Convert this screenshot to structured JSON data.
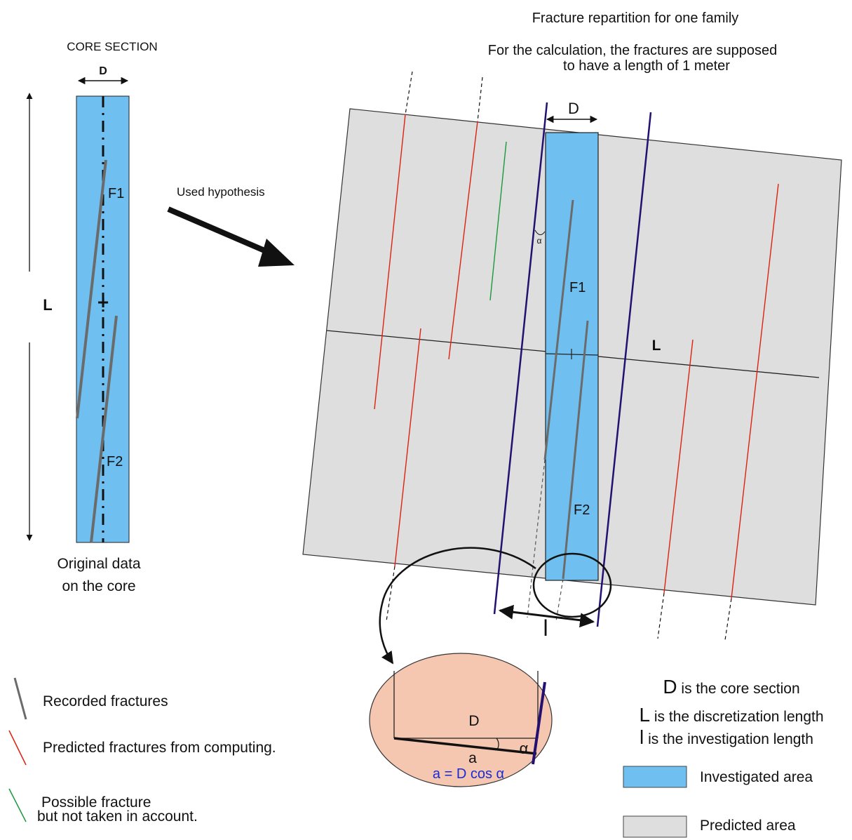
{
  "core_section": {
    "title": "CORE SECTION",
    "diameter_label": "D",
    "length_label": "L",
    "fracture1_label": "F1",
    "fracture2_label": "F2",
    "center_marker": "+",
    "caption_line1": "Original data",
    "caption_line2": "on the core"
  },
  "arrow_label": "Used hypothesis",
  "title": {
    "line1": "Fracture  repartition for one family",
    "line2": "For the calculation, the fractures are supposed",
    "line3": "to have a length of 1 meter"
  },
  "model": {
    "diameter_label": "D",
    "length_label": "L",
    "investigation_label": "l",
    "angle_label": "α",
    "fracture1_label": "F1",
    "fracture2_label": "F2"
  },
  "zoom": {
    "diameter_label": "D",
    "angle_label": "α",
    "adjacent_label": "a",
    "formula": "a = D cos α"
  },
  "legend": {
    "recorded": "Recorded fractures",
    "predicted": "Predicted fractures from computing.",
    "possible_line1": "Possible fracture",
    "possible_line2": "but not taken in account.",
    "definitions": [
      {
        "symbol": "D",
        "text": "is the core section"
      },
      {
        "symbol": "L",
        "text": "is the discretization length"
      },
      {
        "symbol": "l",
        "text": "is the investigation length"
      }
    ],
    "investigated_area": "Investigated area",
    "predicted_area": "Predicted area"
  },
  "colors": {
    "core_fill": "#6fc0f0",
    "predicted_fill": "#dedede",
    "zoom_fill": "#f5c6b0",
    "recorded_fracture": "#6b6b6b",
    "predicted_fracture": "#dd2211",
    "possible_fracture": "#1a9a3c",
    "boundary_line": "#231070",
    "formula_text": "#1a2bd6"
  }
}
